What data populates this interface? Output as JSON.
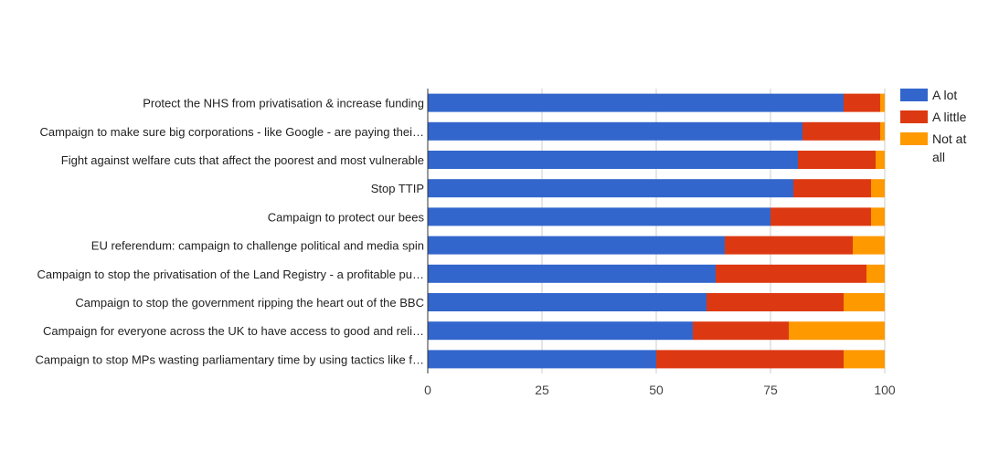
{
  "chart_data": {
    "type": "bar",
    "orientation": "horizontal",
    "stacked": true,
    "categories": [
      "Protect the NHS from privatisation & increase funding",
      "Campaign to make sure big corporations - like Google - are paying thei…",
      "Fight against welfare cuts that affect the poorest and most vulnerable",
      "Stop TTIP",
      "Campaign to protect our bees",
      "EU referendum: campaign to challenge political and media spin",
      "Campaign to stop the privatisation of the Land Registry - a profitable pu…",
      "Campaign to stop the government ripping the heart out of the BBC",
      "Campaign for everyone across the UK to have access to good and reli…",
      "Campaign to stop MPs wasting parliamentary time by using tactics like f…"
    ],
    "series": [
      {
        "name": "A lot",
        "color": "#3366cc",
        "values": [
          91,
          82,
          81,
          80,
          75,
          65,
          63,
          61,
          58,
          50
        ]
      },
      {
        "name": "A little",
        "color": "#dc3912",
        "values": [
          8,
          17,
          17,
          17,
          22,
          28,
          33,
          30,
          21,
          41
        ]
      },
      {
        "name": "Not at all",
        "color": "#ff9900",
        "values": [
          1,
          1,
          2,
          3,
          3,
          7,
          4,
          9,
          21,
          9
        ]
      }
    ],
    "xlim": [
      0,
      100
    ],
    "xticks": [
      "0",
      "25",
      "50",
      "75",
      "100"
    ],
    "grid": true,
    "legend": "right",
    "legend_lines": [
      [
        "A lot"
      ],
      [
        "A little"
      ],
      [
        "Not at",
        "all"
      ]
    ],
    "title": "",
    "xlabel": "",
    "ylabel": ""
  }
}
